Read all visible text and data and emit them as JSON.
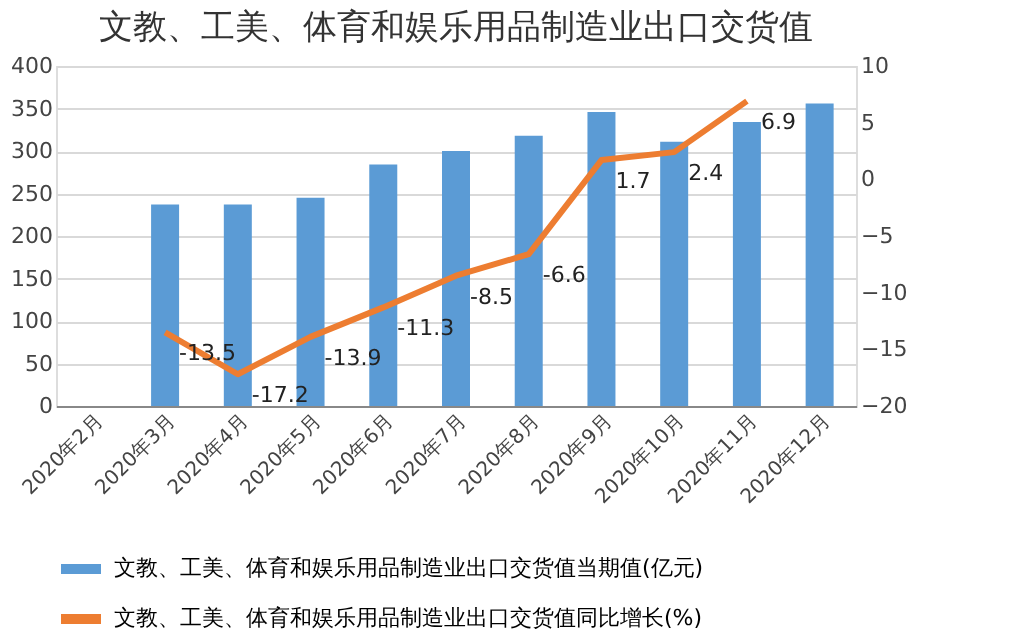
{
  "chart_data": {
    "type": "bar",
    "title": "文教、工美、体育和娱乐用品制造业出口交货值",
    "categories": [
      "2020年2月",
      "2020年3月",
      "2020年4月",
      "2020年5月",
      "2020年6月",
      "2020年7月",
      "2020年8月",
      "2020年9月",
      "2020年10月",
      "2020年11月",
      "2020年12月"
    ],
    "series": [
      {
        "name": "文教、工美、体育和娱乐用品制造业出口交货值当期值(亿元)",
        "color": "#5b9bd5",
        "values": [
          null,
          237,
          237,
          245,
          284,
          300,
          318,
          346,
          311,
          334,
          356
        ]
      },
      {
        "name": "文教、工美、体育和娱乐用品制造业出口交货值同比增长(%)",
        "type": "line",
        "axis": "y2",
        "color": "#ed7d31",
        "values": [
          null,
          -13.5,
          -17.2,
          -13.9,
          -11.3,
          -8.5,
          -6.6,
          1.7,
          2.4,
          6.9,
          null
        ],
        "value_labels": [
          null,
          "-13.5",
          "-17.2",
          "-13.9",
          "-11.3",
          "-8.5",
          "-6.6",
          "1.7",
          "2.4",
          "6.9",
          null
        ]
      }
    ],
    "ylim": [
      0,
      400
    ],
    "yticks": [
      0,
      50,
      100,
      150,
      200,
      250,
      300,
      350,
      400
    ],
    "y2lim": [
      -20,
      10
    ],
    "y2ticks": [
      -20,
      -15,
      -10,
      -5,
      0,
      5,
      10
    ],
    "grid": "y",
    "legend": "bottom"
  }
}
